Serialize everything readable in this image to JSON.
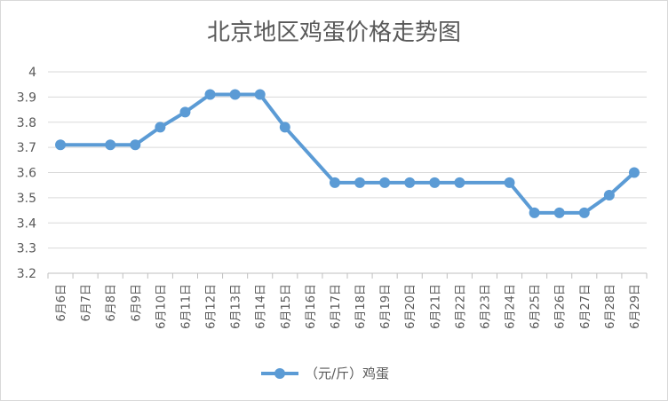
{
  "chart_data": {
    "type": "line",
    "title": "北京地区鸡蛋价格走势图",
    "xlabel": "",
    "ylabel": "",
    "categories": [
      "6月6日",
      "6月7日",
      "6月8日",
      "6月9日",
      "6月10日",
      "6月11日",
      "6月12日",
      "6月13日",
      "6月14日",
      "6月15日",
      "6月16日",
      "6月17日",
      "6月18日",
      "6月19日",
      "6月20日",
      "6月21日",
      "6月22日",
      "6月23日",
      "6月24日",
      "6月25日",
      "6月26日",
      "6月27日",
      "6月28日",
      "6月29日"
    ],
    "series": [
      {
        "name": "（元/斤）鸡蛋",
        "color": "#5b9bd5",
        "values": [
          3.71,
          null,
          3.71,
          3.71,
          3.78,
          3.84,
          3.91,
          3.91,
          3.91,
          3.78,
          null,
          3.56,
          3.56,
          3.56,
          3.56,
          3.56,
          3.56,
          null,
          3.56,
          3.44,
          3.44,
          3.44,
          3.51,
          3.6
        ]
      }
    ],
    "ylim": [
      3.2,
      4.0
    ],
    "yticks": [
      "3.2",
      "3.3",
      "3.4",
      "3.5",
      "3.6",
      "3.7",
      "3.8",
      "3.9",
      "4"
    ],
    "grid": true,
    "legend": "bottom"
  }
}
